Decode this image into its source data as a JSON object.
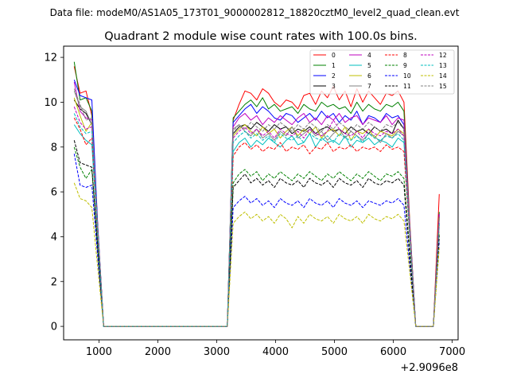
{
  "suptitle": "Data file: modeM0/AS1A05_173T01_9000002812_18820cztM0_level2_quad_clean.evt",
  "chart_data": {
    "type": "line",
    "title": "Quadrant 2 module wise count rates with 100.0s bins.",
    "xlabel": "",
    "ylabel": "",
    "x_offset_label": "+2.9096e8",
    "xlim": [
      400,
      7100
    ],
    "ylim": [
      -0.6,
      12.5
    ],
    "x_ticks": [
      1000,
      2000,
      3000,
      4000,
      5000,
      6000,
      7000
    ],
    "x_tick_labels": [
      "1000",
      "2000",
      "3000",
      "4000",
      "5000",
      "6000",
      "7000"
    ],
    "y_ticks": [
      0,
      2,
      4,
      6,
      8,
      10,
      12
    ],
    "y_tick_labels": [
      "0",
      "2",
      "4",
      "6",
      "8",
      "10",
      "12"
    ],
    "grid": false,
    "legend_position": "top-right",
    "legend_columns": 4,
    "x": [
      580,
      680,
      780,
      880,
      980,
      1080,
      1180,
      1280,
      1380,
      1480,
      1580,
      1680,
      1780,
      1880,
      1980,
      2080,
      2180,
      2280,
      2380,
      2480,
      2580,
      2680,
      2780,
      2880,
      2980,
      3080,
      3180,
      3280,
      3380,
      3480,
      3580,
      3680,
      3780,
      3880,
      3980,
      4080,
      4180,
      4280,
      4380,
      4480,
      4580,
      4680,
      4780,
      4880,
      4980,
      5080,
      5180,
      5280,
      5380,
      5480,
      5580,
      5680,
      5780,
      5880,
      5980,
      6080,
      6180,
      6280,
      6380,
      6480,
      6580,
      6680,
      6780
    ],
    "series": [
      {
        "name": "0",
        "color": "#ff0000",
        "dash": "solid",
        "values": [
          11.6,
          10.4,
          10.5,
          9.4,
          4.5,
          0,
          0,
          0,
          0,
          0,
          0,
          0,
          0,
          0,
          0,
          0,
          0,
          0,
          0,
          0,
          0,
          0,
          0,
          0,
          0,
          0,
          0,
          9.2,
          9.9,
          10.5,
          10.4,
          10.1,
          10.6,
          10.4,
          10.0,
          9.8,
          10.1,
          10.0,
          9.7,
          10.3,
          10.4,
          9.9,
          10.5,
          10.2,
          10.7,
          10.1,
          10.5,
          9.8,
          10.6,
          10.0,
          10.5,
          10.2,
          9.9,
          10.4,
          10.3,
          10.5,
          10.0,
          4.6,
          0,
          0,
          0,
          0,
          5.9
        ]
      },
      {
        "name": "1",
        "color": "#008000",
        "dash": "solid",
        "values": [
          11.8,
          10.1,
          10.2,
          9.6,
          4.4,
          0,
          0,
          0,
          0,
          0,
          0,
          0,
          0,
          0,
          0,
          0,
          0,
          0,
          0,
          0,
          0,
          0,
          0,
          0,
          0,
          0,
          0,
          9.3,
          9.6,
          9.9,
          10.1,
          9.8,
          10.2,
          9.7,
          9.9,
          9.6,
          9.7,
          9.8,
          9.5,
          9.9,
          9.7,
          9.6,
          10.0,
          9.8,
          9.9,
          9.7,
          9.8,
          9.5,
          10.0,
          9.6,
          9.9,
          9.7,
          9.6,
          9.9,
          9.8,
          10.0,
          9.6,
          4.5,
          0,
          0,
          0,
          0,
          5.1
        ]
      },
      {
        "name": "2",
        "color": "#0000ff",
        "dash": "solid",
        "values": [
          11.0,
          10.3,
          10.2,
          10.1,
          4.5,
          0,
          0,
          0,
          0,
          0,
          0,
          0,
          0,
          0,
          0,
          0,
          0,
          0,
          0,
          0,
          0,
          0,
          0,
          0,
          0,
          0,
          0,
          9.1,
          9.4,
          9.7,
          9.9,
          9.5,
          9.8,
          9.6,
          9.3,
          9.2,
          9.5,
          9.4,
          9.1,
          9.3,
          9.5,
          9.2,
          9.6,
          9.3,
          9.5,
          9.1,
          9.4,
          9.2,
          9.6,
          9.0,
          9.4,
          9.3,
          9.1,
          9.5,
          9.3,
          9.4,
          9.0,
          4.4,
          0,
          0,
          0,
          0,
          5.0
        ]
      },
      {
        "name": "3",
        "color": "#000000",
        "dash": "solid",
        "values": [
          10.1,
          9.7,
          9.5,
          9.0,
          4.3,
          0,
          0,
          0,
          0,
          0,
          0,
          0,
          0,
          0,
          0,
          0,
          0,
          0,
          0,
          0,
          0,
          0,
          0,
          0,
          0,
          0,
          0,
          8.6,
          8.9,
          9.0,
          8.8,
          9.1,
          8.9,
          8.7,
          9.0,
          8.8,
          8.9,
          8.6,
          8.8,
          8.7,
          8.9,
          8.6,
          8.8,
          8.9,
          8.7,
          8.8,
          8.6,
          8.9,
          8.7,
          8.8,
          8.6,
          8.9,
          8.7,
          8.8,
          8.6,
          9.2,
          8.8,
          4.3,
          0,
          0,
          0,
          0,
          4.9
        ]
      },
      {
        "name": "4",
        "color": "#bf00bf",
        "dash": "solid",
        "values": [
          10.9,
          9.6,
          9.3,
          9.2,
          4.3,
          0,
          0,
          0,
          0,
          0,
          0,
          0,
          0,
          0,
          0,
          0,
          0,
          0,
          0,
          0,
          0,
          0,
          0,
          0,
          0,
          0,
          0,
          8.9,
          9.3,
          9.5,
          9.2,
          9.4,
          9.0,
          9.3,
          9.1,
          9.4,
          9.2,
          9.0,
          9.3,
          9.5,
          9.1,
          9.3,
          9.0,
          9.4,
          9.2,
          9.5,
          9.1,
          9.3,
          9.4,
          9.0,
          9.3,
          9.2,
          9.1,
          9.4,
          9.0,
          9.3,
          9.2,
          4.4,
          0,
          0,
          0,
          0,
          5.0
        ]
      },
      {
        "name": "5",
        "color": "#00bfbf",
        "dash": "solid",
        "values": [
          9.0,
          8.6,
          8.3,
          8.1,
          4.0,
          0,
          0,
          0,
          0,
          0,
          0,
          0,
          0,
          0,
          0,
          0,
          0,
          0,
          0,
          0,
          0,
          0,
          0,
          0,
          0,
          0,
          0,
          7.8,
          8.2,
          8.4,
          8.0,
          8.3,
          8.1,
          8.4,
          8.2,
          8.0,
          8.3,
          8.5,
          8.1,
          8.2,
          8.6,
          8.0,
          8.4,
          8.2,
          8.3,
          8.1,
          8.5,
          8.0,
          8.3,
          8.2,
          8.4,
          8.1,
          8.3,
          8.2,
          8.0,
          8.4,
          8.2,
          4.1,
          0,
          0,
          0,
          0,
          4.6
        ]
      },
      {
        "name": "6",
        "color": "#bfbf00",
        "dash": "solid",
        "values": [
          10.2,
          9.4,
          8.7,
          9.1,
          4.2,
          0,
          0,
          0,
          0,
          0,
          0,
          0,
          0,
          0,
          0,
          0,
          0,
          0,
          0,
          0,
          0,
          0,
          0,
          0,
          0,
          0,
          0,
          8.5,
          8.8,
          9.0,
          8.7,
          8.5,
          8.9,
          8.6,
          8.8,
          8.4,
          8.7,
          8.9,
          8.5,
          8.8,
          8.6,
          8.9,
          8.4,
          8.7,
          8.8,
          8.5,
          8.9,
          8.3,
          8.7,
          8.6,
          8.8,
          8.4,
          8.7,
          8.6,
          8.5,
          8.8,
          8.6,
          4.2,
          0,
          0,
          0,
          0,
          4.8
        ]
      },
      {
        "name": "7",
        "color": "#808080",
        "dash": "solid",
        "values": [
          10.5,
          9.8,
          9.6,
          9.0,
          4.3,
          0,
          0,
          0,
          0,
          0,
          0,
          0,
          0,
          0,
          0,
          0,
          0,
          0,
          0,
          0,
          0,
          0,
          0,
          0,
          0,
          0,
          0,
          8.8,
          9.0,
          8.7,
          8.5,
          8.8,
          8.4,
          8.6,
          8.3,
          8.7,
          8.5,
          8.9,
          8.4,
          8.6,
          8.8,
          8.5,
          8.7,
          8.3,
          8.6,
          8.8,
          8.4,
          8.7,
          8.5,
          8.3,
          8.6,
          8.5,
          8.2,
          8.6,
          8.4,
          8.7,
          8.5,
          4.2,
          0,
          0,
          0,
          0,
          4.8
        ]
      },
      {
        "name": "8",
        "color": "#ff0000",
        "dash": "dashed",
        "values": [
          9.3,
          8.8,
          8.1,
          8.4,
          4.0,
          0,
          0,
          0,
          0,
          0,
          0,
          0,
          0,
          0,
          0,
          0,
          0,
          0,
          0,
          0,
          0,
          0,
          0,
          0,
          0,
          0,
          0,
          7.6,
          8.0,
          8.2,
          7.9,
          8.1,
          7.8,
          8.0,
          7.9,
          8.2,
          7.8,
          8.0,
          7.9,
          8.1,
          7.7,
          8.0,
          7.9,
          8.2,
          7.8,
          8.0,
          7.9,
          8.1,
          7.8,
          8.0,
          7.9,
          8.0,
          7.8,
          8.1,
          7.9,
          8.0,
          7.8,
          3.9,
          0,
          0,
          0,
          0,
          4.5
        ]
      },
      {
        "name": "9",
        "color": "#008000",
        "dash": "dashed",
        "values": [
          8.0,
          7.1,
          6.6,
          7.0,
          3.4,
          0,
          0,
          0,
          0,
          0,
          0,
          0,
          0,
          0,
          0,
          0,
          0,
          0,
          0,
          0,
          0,
          0,
          0,
          0,
          0,
          0,
          0,
          6.4,
          6.8,
          7.0,
          6.7,
          6.9,
          6.5,
          6.8,
          6.6,
          6.9,
          6.7,
          6.5,
          6.8,
          6.6,
          6.9,
          6.7,
          6.5,
          6.8,
          6.6,
          6.9,
          6.7,
          6.5,
          6.8,
          6.6,
          6.9,
          6.7,
          6.5,
          6.8,
          6.7,
          6.9,
          6.6,
          3.3,
          0,
          0,
          0,
          0,
          4.1
        ]
      },
      {
        "name": "10",
        "color": "#0000ff",
        "dash": "dashed",
        "values": [
          7.7,
          6.3,
          6.2,
          6.3,
          3.1,
          0,
          0,
          0,
          0,
          0,
          0,
          0,
          0,
          0,
          0,
          0,
          0,
          0,
          0,
          0,
          0,
          0,
          0,
          0,
          0,
          0,
          0,
          5.3,
          5.6,
          5.8,
          5.5,
          5.7,
          5.4,
          5.6,
          5.3,
          5.7,
          5.5,
          5.4,
          5.6,
          5.3,
          5.7,
          5.5,
          5.4,
          5.6,
          5.3,
          5.7,
          5.5,
          5.4,
          5.6,
          5.3,
          5.6,
          5.5,
          5.4,
          5.6,
          5.5,
          5.7,
          5.4,
          2.7,
          0,
          0,
          0,
          0,
          3.8
        ]
      },
      {
        "name": "11",
        "color": "#000000",
        "dash": "dashed",
        "values": [
          8.3,
          7.3,
          7.2,
          7.1,
          3.5,
          0,
          0,
          0,
          0,
          0,
          0,
          0,
          0,
          0,
          0,
          0,
          0,
          0,
          0,
          0,
          0,
          0,
          0,
          0,
          0,
          0,
          0,
          6.2,
          6.5,
          6.8,
          6.4,
          6.6,
          6.3,
          6.5,
          6.2,
          6.6,
          6.4,
          6.3,
          6.5,
          6.2,
          6.6,
          6.4,
          6.3,
          6.5,
          6.2,
          6.6,
          6.4,
          6.3,
          6.5,
          6.2,
          6.6,
          6.4,
          6.3,
          6.5,
          6.4,
          6.6,
          6.3,
          3.1,
          0,
          0,
          0,
          0,
          4.0
        ]
      },
      {
        "name": "12",
        "color": "#bf00bf",
        "dash": "dashed",
        "values": [
          9.8,
          9.1,
          8.8,
          8.9,
          4.2,
          0,
          0,
          0,
          0,
          0,
          0,
          0,
          0,
          0,
          0,
          0,
          0,
          0,
          0,
          0,
          0,
          0,
          0,
          0,
          0,
          0,
          0,
          8.4,
          8.7,
          8.9,
          8.6,
          8.8,
          8.5,
          8.7,
          8.4,
          8.8,
          8.6,
          8.5,
          8.7,
          8.4,
          8.8,
          8.6,
          8.5,
          8.7,
          9.2,
          8.8,
          8.6,
          8.5,
          8.7,
          8.4,
          8.8,
          8.6,
          8.5,
          8.7,
          8.6,
          8.8,
          8.5,
          4.1,
          0,
          0,
          0,
          0,
          4.7
        ]
      },
      {
        "name": "13",
        "color": "#00bfbf",
        "dash": "dashed",
        "values": [
          9.5,
          8.9,
          8.6,
          8.7,
          4.1,
          0,
          0,
          0,
          0,
          0,
          0,
          0,
          0,
          0,
          0,
          0,
          0,
          0,
          0,
          0,
          0,
          0,
          0,
          0,
          0,
          0,
          0,
          8.2,
          8.5,
          8.7,
          8.4,
          8.6,
          8.3,
          8.5,
          8.2,
          8.6,
          8.4,
          8.3,
          8.5,
          8.2,
          8.6,
          8.4,
          8.3,
          8.5,
          8.2,
          8.6,
          8.4,
          8.3,
          8.5,
          8.2,
          8.6,
          8.4,
          8.3,
          8.5,
          8.4,
          8.6,
          8.3,
          4.0,
          0,
          0,
          0,
          0,
          4.6
        ]
      },
      {
        "name": "14",
        "color": "#bfbf00",
        "dash": "dashed",
        "values": [
          6.4,
          5.7,
          5.6,
          5.3,
          2.6,
          0,
          0,
          0,
          0,
          0,
          0,
          0,
          0,
          0,
          0,
          0,
          0,
          0,
          0,
          0,
          0,
          0,
          0,
          0,
          0,
          0,
          0,
          4.6,
          4.9,
          5.1,
          4.8,
          5.0,
          4.7,
          4.9,
          4.6,
          5.0,
          4.8,
          4.4,
          4.9,
          4.6,
          5.0,
          4.8,
          4.7,
          4.9,
          4.6,
          5.0,
          4.8,
          4.7,
          4.9,
          4.6,
          5.0,
          4.8,
          4.7,
          4.9,
          4.8,
          5.0,
          4.7,
          2.4,
          0,
          0,
          0,
          0,
          3.5
        ]
      },
      {
        "name": "15",
        "color": "#808080",
        "dash": "dashed",
        "values": [
          10.6,
          9.9,
          9.2,
          9.3,
          4.3,
          0,
          0,
          0,
          0,
          0,
          0,
          0,
          0,
          0,
          0,
          0,
          0,
          0,
          0,
          0,
          0,
          0,
          0,
          0,
          0,
          0,
          0,
          8.7,
          9.0,
          8.8,
          9.1,
          8.9,
          8.7,
          9.0,
          8.8,
          9.1,
          8.9,
          8.7,
          9.0,
          8.8,
          9.1,
          8.9,
          8.7,
          9.0,
          8.8,
          9.1,
          8.9,
          8.7,
          9.0,
          8.8,
          9.1,
          8.9,
          8.7,
          9.0,
          8.9,
          9.1,
          8.8,
          4.3,
          0,
          0,
          0,
          0,
          4.9
        ]
      }
    ]
  }
}
